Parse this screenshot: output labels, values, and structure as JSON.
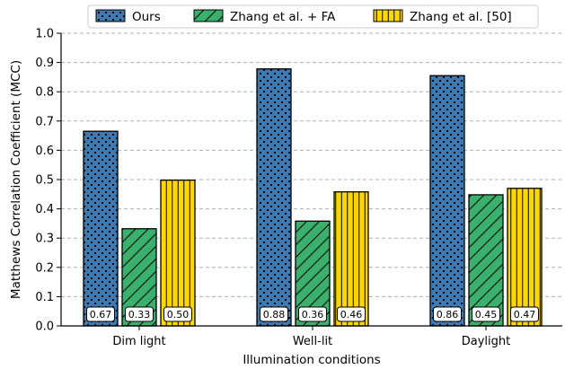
{
  "chart_data": {
    "type": "bar",
    "title": "",
    "xlabel": "Illumination conditions",
    "ylabel": "Matthews Correlation Coefficient (MCC)",
    "ylim": [
      0,
      1.0
    ],
    "yticks": [
      "0.0",
      "0.1",
      "0.2",
      "0.3",
      "0.4",
      "0.5",
      "0.6",
      "0.7",
      "0.8",
      "0.9",
      "1.0"
    ],
    "grid": "horizontal dashed",
    "legend_position": "top-center",
    "categories": [
      "Dim light",
      "Well-lit",
      "Daylight"
    ],
    "series": [
      {
        "name": "Ours",
        "values": [
          0.665,
          0.878,
          0.855
        ],
        "labels": [
          "0.67",
          "0.88",
          "0.86"
        ],
        "color": "#3f7ab3",
        "pattern": "dots"
      },
      {
        "name": "Zhang et al. + FA",
        "values": [
          0.332,
          0.358,
          0.448
        ],
        "labels": [
          "0.33",
          "0.36",
          "0.45"
        ],
        "color": "#3bb06c",
        "pattern": "diagonal-hatch"
      },
      {
        "name": "Zhang et al. [50]",
        "values": [
          0.498,
          0.458,
          0.47
        ],
        "labels": [
          "0.50",
          "0.46",
          "0.47"
        ],
        "color": "#ffd700",
        "pattern": "vertical-lines"
      }
    ]
  }
}
